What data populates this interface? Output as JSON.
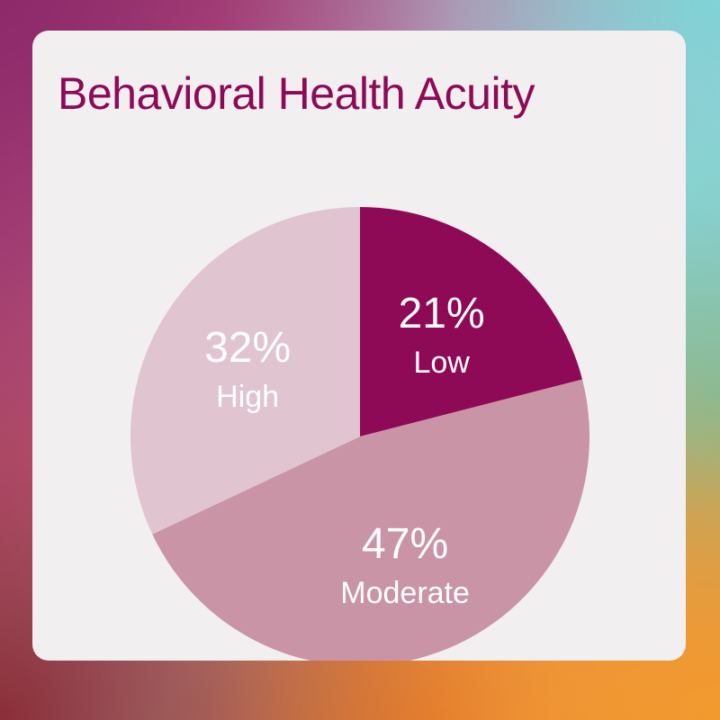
{
  "colors": {
    "title": "#8e0a56",
    "label": "#ffffff",
    "card": "#f2eff0"
  },
  "chart_data": {
    "type": "pie",
    "title": "Behavioral Health Acuity",
    "start_angle_deg": 0,
    "direction": "clockwise",
    "slices": [
      {
        "label": "Low",
        "value": 21,
        "value_text": "21%",
        "color": "#8e0a56"
      },
      {
        "label": "Moderate",
        "value": 47,
        "value_text": "47%",
        "color": "#c994a5"
      },
      {
        "label": "High",
        "value": 32,
        "value_text": "32%",
        "color": "#e0c4d0"
      }
    ]
  }
}
